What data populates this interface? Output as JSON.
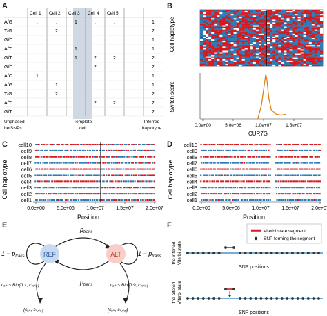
{
  "panel_labels": [
    "A",
    "B",
    "C",
    "D",
    "E",
    "F"
  ],
  "panelA": {
    "columns": [
      "Cell 1",
      "Cell 2",
      "Cell 3",
      "Cell 4",
      "Cell 5"
    ],
    "rows": [
      {
        "snp": "A/G",
        "cells": [
          ".",
          ".",
          "1",
          ".",
          "."
        ],
        "inferred": "1"
      },
      {
        "snp": "T/G",
        "cells": [
          ".",
          "2",
          ".",
          ".",
          "."
        ],
        "inferred": "2"
      },
      {
        "snp": "G/C",
        "cells": [
          ".",
          ".",
          ".",
          ".",
          "."
        ],
        "inferred": "1"
      },
      {
        "snp": "A/T",
        "cells": [
          ".",
          ".",
          "1",
          ".",
          "."
        ],
        "inferred": "1"
      },
      {
        "snp": "G/T",
        "cells": [
          ".",
          ".",
          "1",
          "2",
          "2"
        ],
        "inferred": "2"
      },
      {
        "snp": "G/C",
        "cells": [
          ".",
          ".",
          ".",
          "2",
          "."
        ],
        "inferred": "2"
      },
      {
        "snp": "A/C",
        "cells": [
          "1",
          ".",
          ".",
          ".",
          "."
        ],
        "inferred": "1"
      },
      {
        "snp": "A/G",
        "cells": [
          ".",
          "1",
          ".",
          ".",
          "."
        ],
        "inferred": "1"
      },
      {
        "snp": "T/G",
        "cells": [
          ".",
          "2",
          ".",
          ".",
          "."
        ],
        "inferred": "2"
      },
      {
        "snp": "A/T",
        "cells": [
          ".",
          ".",
          ".",
          "2",
          "2"
        ],
        "inferred": "2"
      },
      {
        "snp": "G/T",
        "cells": [
          ".",
          ".",
          ".",
          ".",
          "."
        ],
        "inferred": "2"
      }
    ],
    "footer_left": [
      "Unphased",
      "hetSNPs"
    ],
    "footer_mid": [
      "Template",
      "cell"
    ],
    "footer_right": [
      "Inferred",
      "haplotype"
    ]
  },
  "panelB": {
    "top_ylabel": "Cell haplotype",
    "bottom_ylabel": "Switch score",
    "xlabel": "CUR7G",
    "xticks": [
      "0.0e+00",
      "5.0e+06",
      "1.0e+07",
      "1.5e+07"
    ]
  },
  "panelC": {
    "ylabel": "Cell haplotype",
    "xlabel": "Position",
    "cells": [
      "cell10",
      "cell9",
      "cell8",
      "cell7",
      "cell6",
      "cell5",
      "cell4",
      "cell3",
      "cell2",
      "cell1"
    ],
    "xticks": [
      "0.0e+00",
      "5.0e+06",
      "1.0e+07",
      "1.5e+07",
      "2.0e+07"
    ]
  },
  "panelD": {
    "ylabel": "Cell haplotype",
    "xlabel": "Position",
    "cells": [
      "cell10",
      "cell9",
      "cell8",
      "cell7",
      "cell6",
      "cell5",
      "cell4",
      "cell3",
      "cell2",
      "cell1"
    ],
    "xticks": [
      "0.0e+00",
      "5.0e+06",
      "1.0e+07",
      "1.5e+07",
      "2.0e+07"
    ]
  },
  "panelE": {
    "ref": "REF",
    "alt": "ALT",
    "ptrans": "p",
    "ptrans_sub": "trans",
    "one_minus": "1 − p",
    "ref_formula": "cₐₗₜ ~ Bin(0.1, cₜₒₜₐₗ)",
    "alt_formula": "cₐₗₜ ~ Bin(0.9, cₜₒₜₐₗ)",
    "ref_obs": "(cₐₗₜ, cₜₒₜₐₗ)",
    "alt_obs": "(cₐₗₜ, cₜₒₜₐₗ)"
  },
  "panelF": {
    "legend": [
      "Viterbi state segment",
      "SNP forming the segment"
    ],
    "top_ylabel": [
      "the inferred",
      "Viterbi state"
    ],
    "bottom_ylabel": [
      "the altered",
      "Viterbi state"
    ],
    "xlabel": "SNP positions"
  },
  "colors": {
    "red": "#d7191c",
    "blue": "#2c7bb6",
    "orange": "#e08214",
    "highlight": "#cfd8e3",
    "ref_fill": "#c9d9f0",
    "alt_fill": "#f7cfc8"
  }
}
